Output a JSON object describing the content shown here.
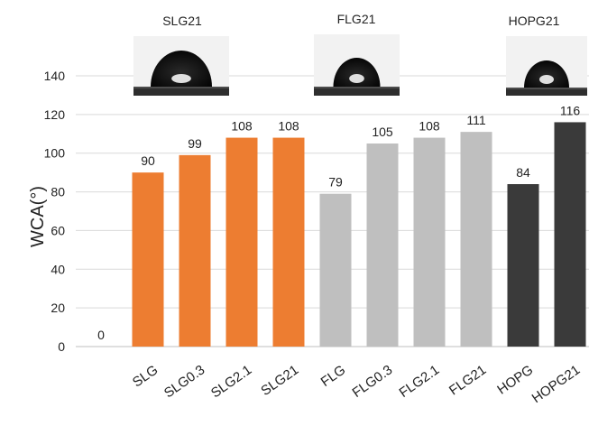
{
  "chart_data": {
    "type": "bar",
    "ylabel": "WCA(°)",
    "ylim": [
      0,
      140
    ],
    "yticks": [
      0,
      20,
      40,
      60,
      80,
      100,
      120,
      140
    ],
    "grid": true,
    "categories": [
      "",
      "SLG",
      "SLG0.3",
      "SLG2.1",
      "SLG21",
      "FLG",
      "FLG0.3",
      "FLG2.1",
      "FLG21",
      "HOPG",
      "HOPG21"
    ],
    "values": [
      0,
      90,
      99,
      108,
      108,
      79,
      105,
      108,
      111,
      84,
      116
    ],
    "data_labels": [
      "0",
      "90",
      "99",
      "108",
      "108",
      "79",
      "105",
      "108",
      "111",
      "84",
      "116"
    ],
    "bar_colors": [
      "#ed7d31",
      "#ed7d31",
      "#ed7d31",
      "#ed7d31",
      "#ed7d31",
      "#bfbfbf",
      "#bfbfbf",
      "#bfbfbf",
      "#bfbfbf",
      "#3a3a3a",
      "#3a3a3a"
    ],
    "insets": [
      {
        "label": "SLG21",
        "description": "water droplet photo"
      },
      {
        "label": "FLG21",
        "description": "water droplet photo"
      },
      {
        "label": "HOPG21",
        "description": "water droplet photo"
      }
    ]
  }
}
